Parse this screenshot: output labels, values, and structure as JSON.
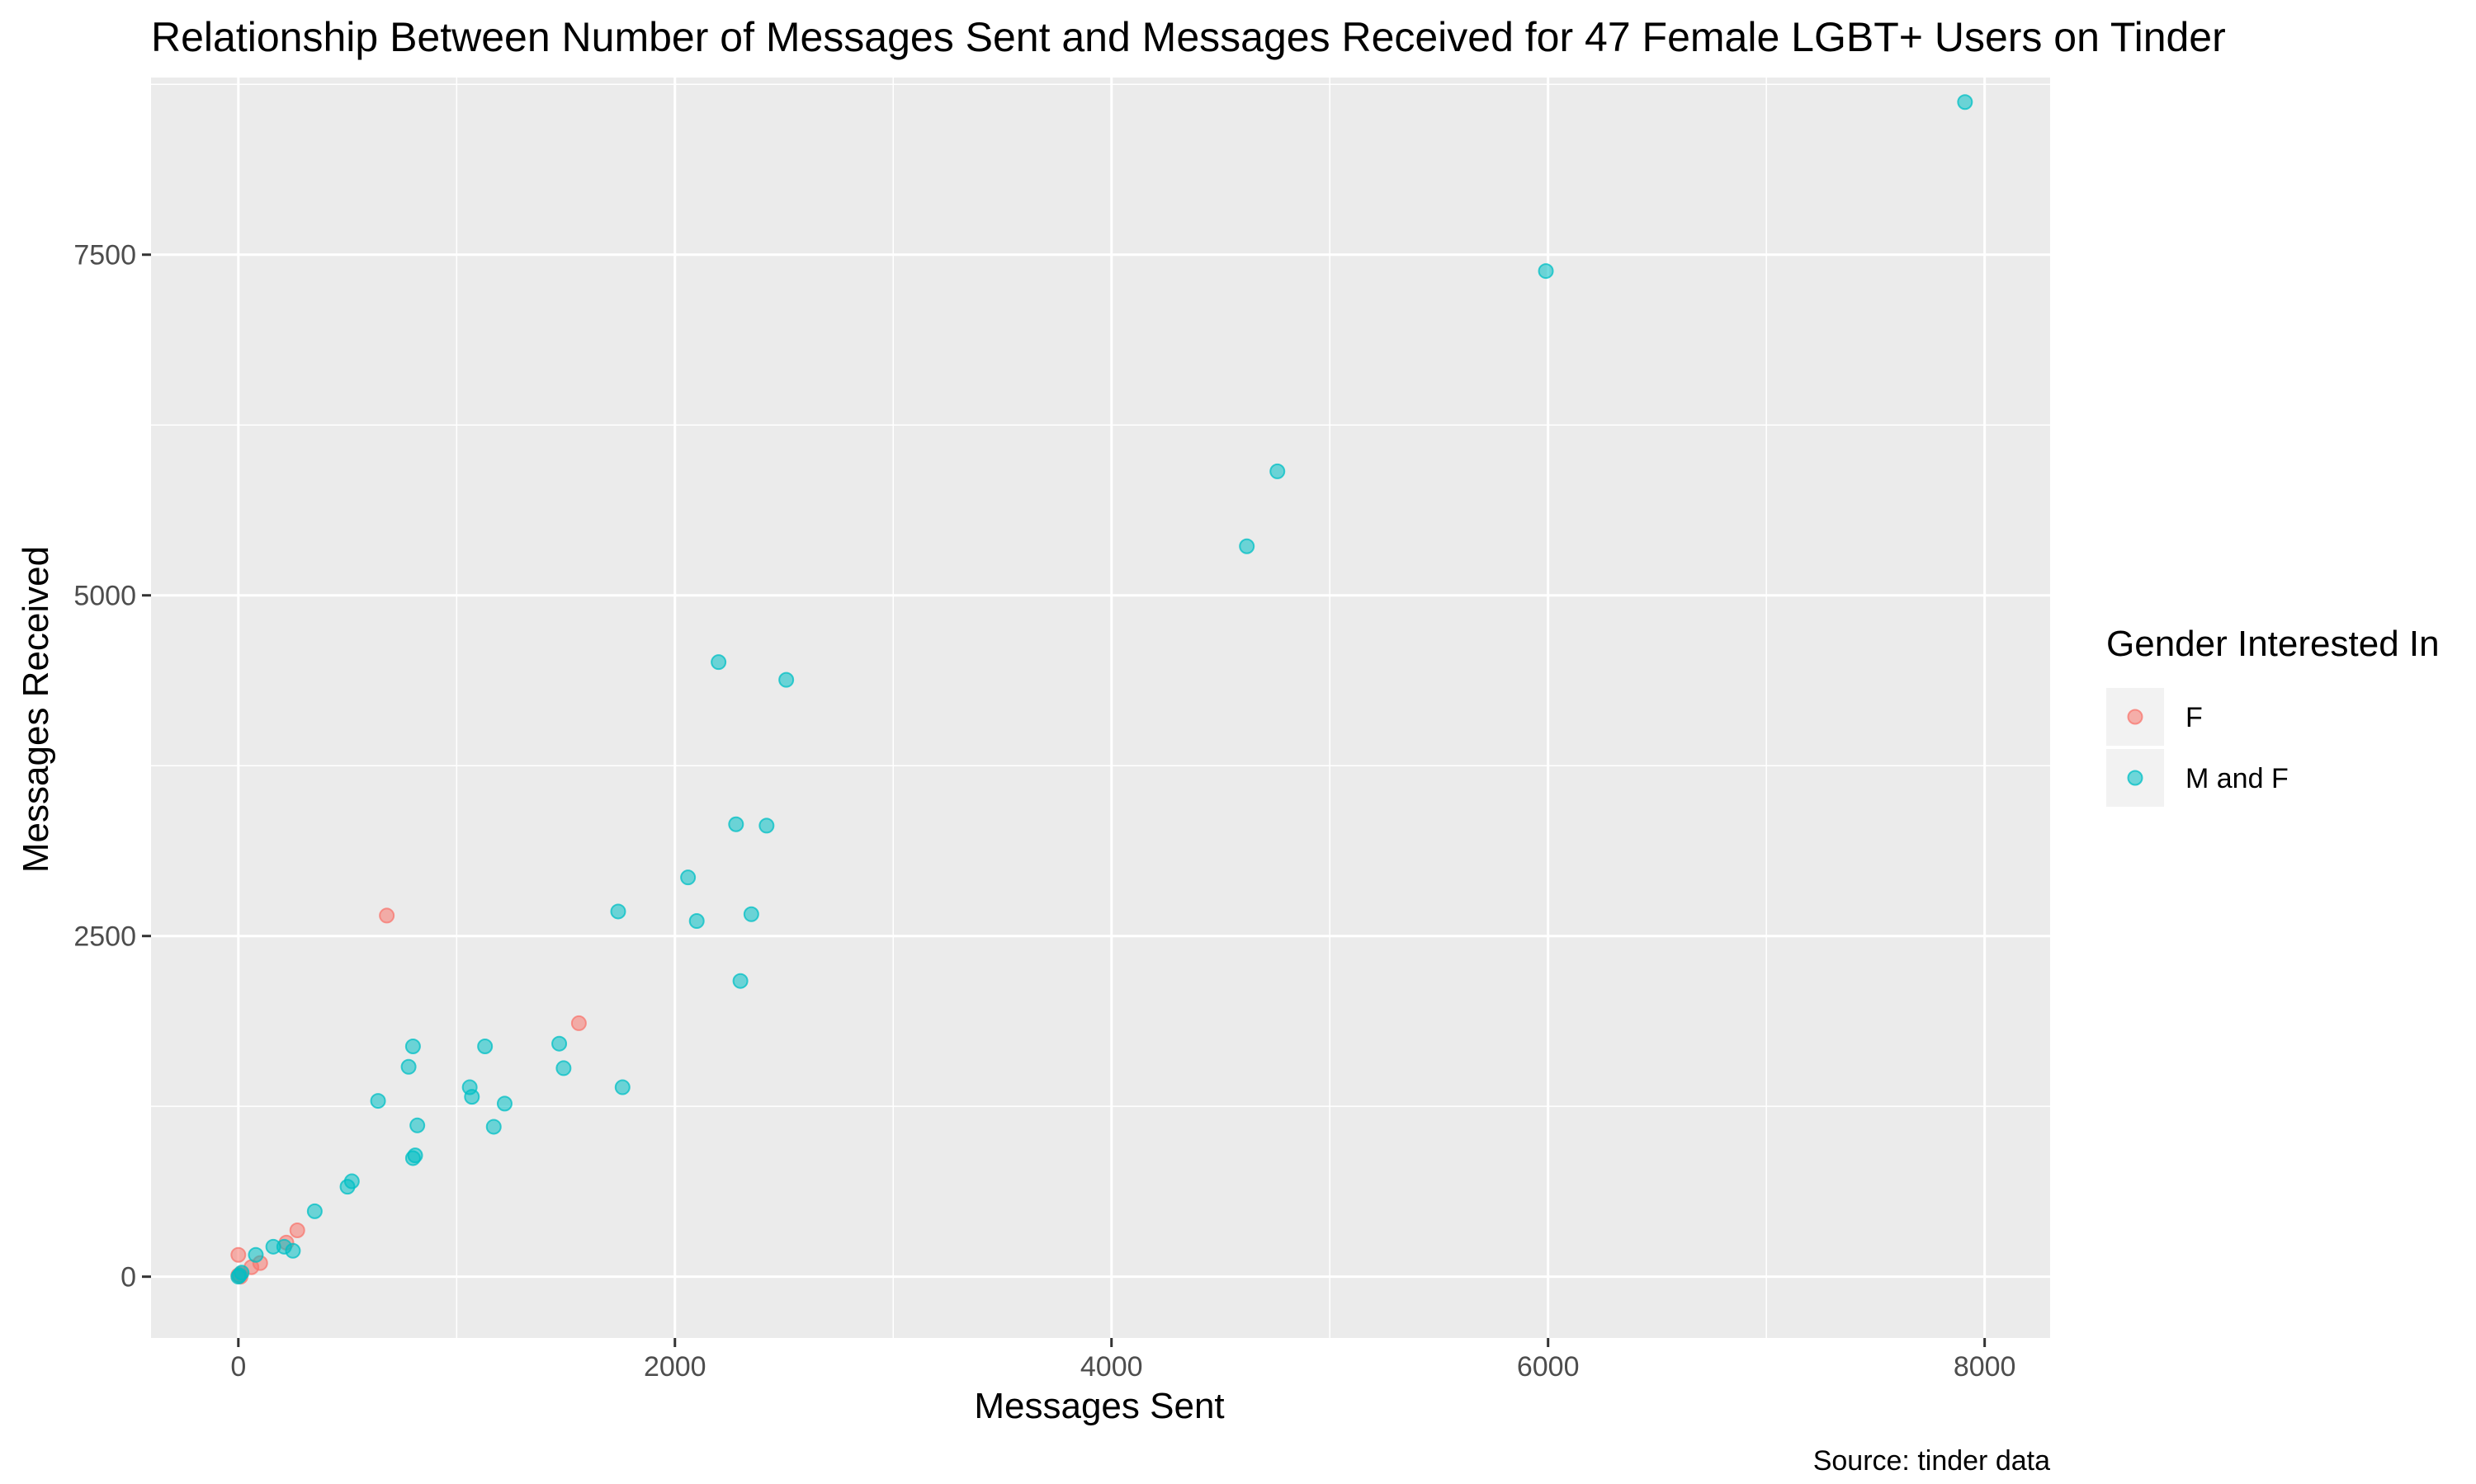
{
  "chart_data": {
    "type": "scatter",
    "title": "Relationship Between Number of Messages Sent and Messages Received for 47 Female LGBT+ Users on Tinder",
    "xlabel": "Messages Sent",
    "ylabel": "Messages Received",
    "caption": "Source: tinder data",
    "xlim": [
      -400,
      8300
    ],
    "ylim": [
      -450,
      8800
    ],
    "x_ticks": [
      0,
      2000,
      4000,
      6000,
      8000
    ],
    "x_tick_labels": [
      "0",
      "2000",
      "4000",
      "6000",
      "8000"
    ],
    "y_ticks": [
      0,
      2500,
      5000,
      7500
    ],
    "y_tick_labels": [
      "0",
      "2500",
      "5000",
      "7500"
    ],
    "grid": true,
    "legend": {
      "title": "Gender Interested In",
      "placement": "right"
    },
    "series": [
      {
        "name": "F",
        "color": "#F8766D",
        "points": [
          [
            0,
            160
          ],
          [
            0,
            10
          ],
          [
            10,
            20
          ],
          [
            60,
            70
          ],
          [
            100,
            100
          ],
          [
            220,
            250
          ],
          [
            270,
            340
          ],
          [
            680,
            2650
          ],
          [
            1560,
            1860
          ],
          [
            10,
            0
          ]
        ]
      },
      {
        "name": "M and F",
        "color": "#00BFC4",
        "points": [
          [
            0,
            0
          ],
          [
            5,
            10
          ],
          [
            15,
            30
          ],
          [
            80,
            160
          ],
          [
            160,
            220
          ],
          [
            210,
            220
          ],
          [
            250,
            190
          ],
          [
            350,
            480
          ],
          [
            500,
            660
          ],
          [
            520,
            700
          ],
          [
            640,
            1290
          ],
          [
            780,
            1540
          ],
          [
            800,
            1690
          ],
          [
            800,
            870
          ],
          [
            810,
            890
          ],
          [
            820,
            1110
          ],
          [
            1060,
            1390
          ],
          [
            1070,
            1320
          ],
          [
            1130,
            1690
          ],
          [
            1170,
            1100
          ],
          [
            1220,
            1270
          ],
          [
            1470,
            1710
          ],
          [
            1490,
            1530
          ],
          [
            1740,
            2680
          ],
          [
            1760,
            1390
          ],
          [
            2060,
            2930
          ],
          [
            2100,
            2610
          ],
          [
            2200,
            4510
          ],
          [
            2280,
            3320
          ],
          [
            2300,
            2170
          ],
          [
            2350,
            2660
          ],
          [
            2420,
            3310
          ],
          [
            2510,
            4380
          ],
          [
            4620,
            5360
          ],
          [
            4760,
            5910
          ],
          [
            5990,
            7380
          ],
          [
            7910,
            8620
          ]
        ]
      }
    ]
  }
}
